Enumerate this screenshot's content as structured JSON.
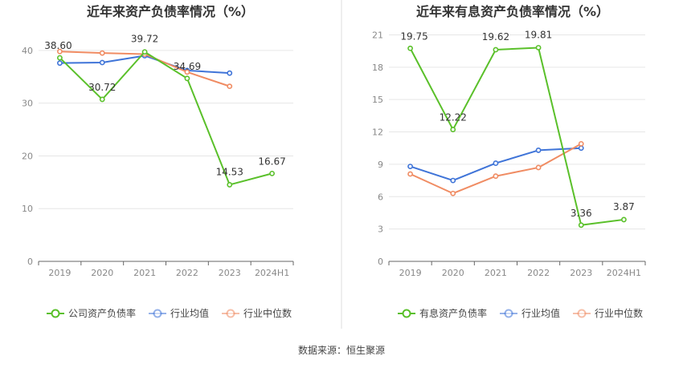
{
  "colors": {
    "company": "#5ac02a",
    "industry_avg": "#3f74d8",
    "industry_median": "#f08c63",
    "axis_text": "#888888",
    "grid": "#e6e6e6",
    "title": "#333333",
    "divider": "#dddddd"
  },
  "chart_data": [
    {
      "type": "line",
      "title": "近年来资产负债率情况（%）",
      "categories": [
        "2019",
        "2020",
        "2021",
        "2022",
        "2023",
        "2024H1"
      ],
      "ylim": [
        0,
        45
      ],
      "yticks": [
        0,
        10,
        20,
        30,
        40
      ],
      "series": [
        {
          "name": "公司资产负债率",
          "key": "company",
          "values": [
            38.6,
            30.72,
            39.72,
            34.69,
            14.53,
            16.67
          ],
          "labels": [
            "38.60",
            "30.72",
            "39.72",
            "34.69",
            "14.53",
            "16.67"
          ]
        },
        {
          "name": "行业均值",
          "key": "industry_avg",
          "values": [
            37.6,
            37.7,
            39.0,
            36.2,
            35.7,
            null
          ],
          "labels": null
        },
        {
          "name": "行业中位数",
          "key": "industry_median",
          "values": [
            39.8,
            39.5,
            39.3,
            35.9,
            33.2,
            null
          ],
          "labels": null
        }
      ]
    },
    {
      "type": "line",
      "title": "近年来有息资产负债率情况（%）",
      "categories": [
        "2019",
        "2020",
        "2021",
        "2022",
        "2023",
        "2024H1"
      ],
      "ylim": [
        0,
        22
      ],
      "yticks": [
        0,
        3,
        6,
        9,
        12,
        15,
        18,
        21
      ],
      "series": [
        {
          "name": "有息资产负债率",
          "key": "company",
          "values": [
            19.75,
            12.22,
            19.62,
            19.81,
            3.36,
            3.87
          ],
          "labels": [
            "19.75",
            "12.22",
            "19.62",
            "19.81",
            "3.36",
            "3.87"
          ]
        },
        {
          "name": "行业均值",
          "key": "industry_avg",
          "values": [
            8.8,
            7.5,
            9.1,
            10.3,
            10.5,
            null
          ],
          "labels": null
        },
        {
          "name": "行业中位数",
          "key": "industry_median",
          "values": [
            8.1,
            6.3,
            7.9,
            8.7,
            10.9,
            null
          ],
          "labels": null
        }
      ]
    }
  ],
  "footer": {
    "source": "数据来源：恒生聚源"
  }
}
